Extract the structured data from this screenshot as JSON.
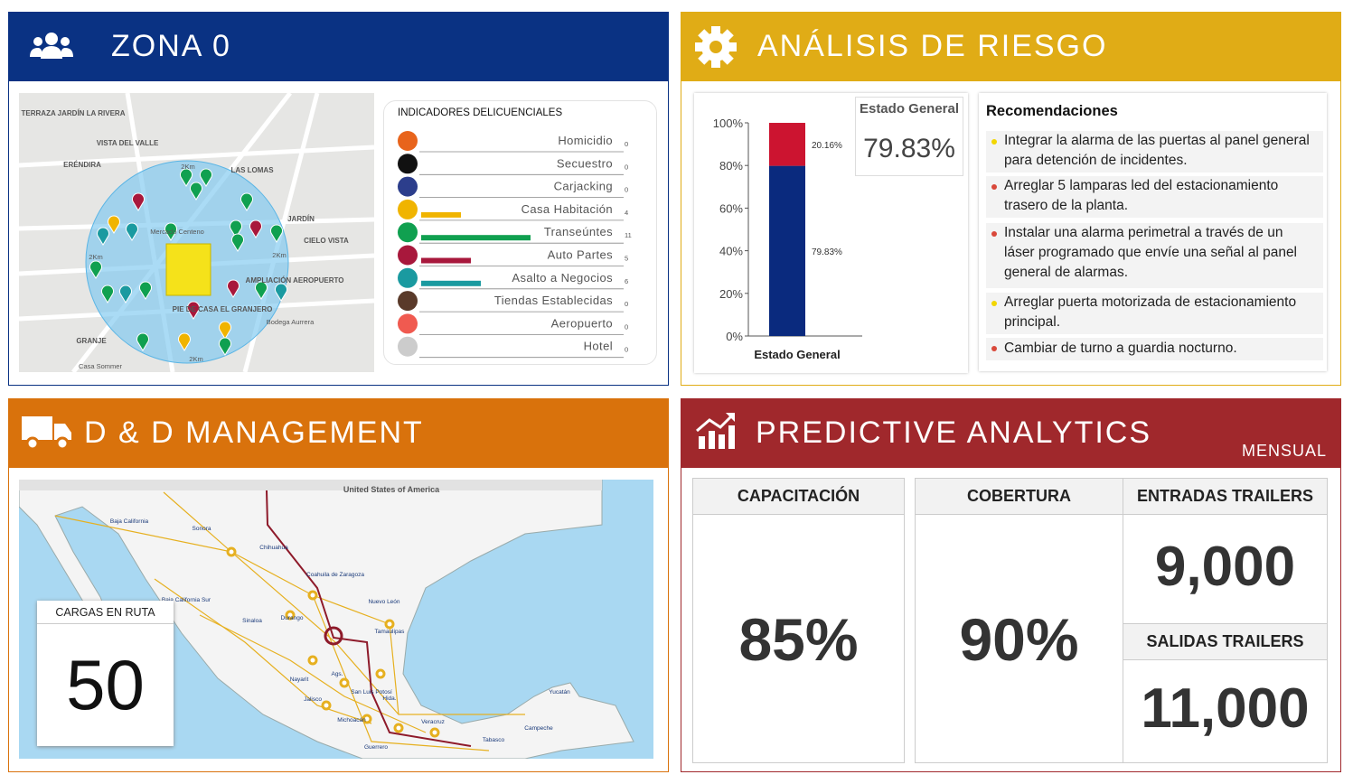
{
  "zona": {
    "title": "ZONA 0",
    "map_labels": [
      "TERRAZA JARDÍN LA RIVERA",
      "VISTA DEL VALLE",
      "ERÉNDIRA",
      "LAS LOMAS",
      "JARDÍN",
      "CIELO VISTA",
      "AMPLIACIÓN AEROPUERTO",
      "PIE DE CASA EL GRANJERO",
      "GRANJE",
      "Mercado Centeno",
      "Bodega Aurrera",
      "Casa Sommer",
      "2Km",
      "2Km",
      "2Km",
      "2Km"
    ],
    "indicators": {
      "title": "INDICADORES DELICUENCIALES",
      "items": [
        {
          "name": "Homicidio",
          "value": 0,
          "color": "#e8641c"
        },
        {
          "name": "Secuestro",
          "value": 0,
          "color": "#111111"
        },
        {
          "name": "Carjacking",
          "value": 0,
          "color": "#2c3e8c"
        },
        {
          "name": "Casa Habitación",
          "value": 4,
          "color": "#f0b400"
        },
        {
          "name": "Transeúntes",
          "value": 11,
          "color": "#10a050"
        },
        {
          "name": "Auto Partes",
          "value": 5,
          "color": "#a8183c"
        },
        {
          "name": "Asalto a Negocios",
          "value": 6,
          "color": "#1a9aa0"
        },
        {
          "name": "Tiendas Establecidas",
          "value": 0,
          "color": "#5a3a2a"
        },
        {
          "name": "Aeropuerto",
          "value": 0,
          "color": "#f05a50"
        },
        {
          "name": "Hotel",
          "value": 0,
          "color": "#cccccc"
        }
      ]
    }
  },
  "risk": {
    "title": "ANÁLISIS DE RIESGO",
    "chart": {
      "type": "bar",
      "categories": [
        "Estado General"
      ],
      "ylim": [
        0,
        100
      ],
      "yticks": [
        {
          "value": 0,
          "label": "0%"
        },
        {
          "value": 20,
          "label": "20%"
        },
        {
          "value": 40,
          "label": "40%"
        },
        {
          "value": 60,
          "label": "60%"
        },
        {
          "value": 80,
          "label": "80%"
        },
        {
          "value": 100,
          "label": "100%"
        }
      ],
      "series": [
        {
          "color": "#0a2a7e",
          "values": [
            79.83
          ],
          "value_labels": [
            "79.83%"
          ]
        },
        {
          "color": "#cc1430",
          "values": [
            20.16
          ],
          "value_labels": [
            "20.16%"
          ]
        }
      ]
    },
    "summary": {
      "label": "Estado General",
      "value": "79.83%"
    },
    "recommendations": {
      "title": "Recomendaciones",
      "items": [
        {
          "text": "Integrar la alarma de las puertas al panel general para detención de incidentes.",
          "color": "#f2d600"
        },
        {
          "text": "Arreglar 5 lamparas led del estacionamiento trasero de la planta.",
          "color": "#d9483a"
        },
        {
          "text": "Instalar una alarma perimetral a través de un láser programado que envíe una señal al panel general de alarmas.",
          "color": "#d9483a"
        },
        {
          "text": "Arreglar puerta motorizada de estacionamiento principal.",
          "color": "#f2d600"
        },
        {
          "text": "Cambiar de turno a guardia nocturno.",
          "color": "#d9483a"
        }
      ]
    }
  },
  "dd": {
    "title": "D & D MANAGEMENT",
    "map_labels": [
      "United States of America",
      "Sonora",
      "Chihuahua",
      "Coahuila de Zaragoza",
      "Nuevo León",
      "Tamaulipas",
      "Baja California",
      "Baja California Sur",
      "Sinaloa",
      "Durango",
      "Nayarit",
      "Jalisco",
      "Ags.",
      "San Luis Potosí",
      "Hida.",
      "Michoacán",
      "Guerrero",
      "Veracruz",
      "Tabasco",
      "Campeche",
      "Yucatán"
    ],
    "cargas": {
      "label": "CARGAS EN RUTA",
      "value": "50"
    }
  },
  "predictive": {
    "title": "PREDICTIVE ANALYTICS",
    "period": "MENSUAL",
    "kpis": [
      {
        "label": "CAPACITACIÓN",
        "value": "85%"
      },
      {
        "label": "COBERTURA",
        "value": "90%"
      },
      {
        "label": "ENTRADAS TRAILERS",
        "value": "9,000"
      },
      {
        "label": "SALIDAS TRAILERS",
        "value": "11,000"
      }
    ]
  }
}
